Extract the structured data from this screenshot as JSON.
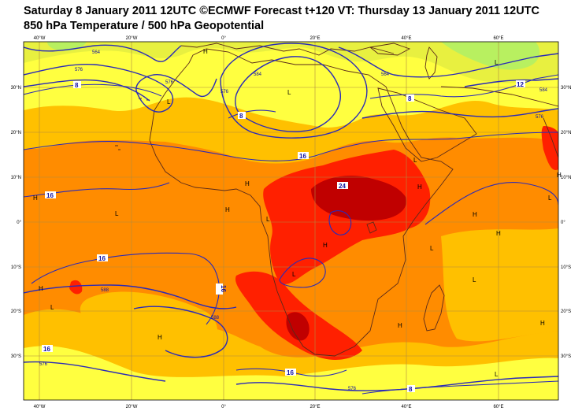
{
  "header": {
    "title_line1": "Saturday 8 January 2011 12UTC ©ECMWF Forecast t+120 VT: Thursday 13 January 2011 12UTC",
    "title_line2": "850 hPa Temperature / 500 hPa Geopotential"
  },
  "colors": {
    "temp_below_4": "#b8f060",
    "temp_4_8": "#e8f040",
    "temp_8_12": "#ffff40",
    "temp_12_16": "#ffc000",
    "temp_16_20": "#ff8c00",
    "temp_20_24": "#ff2000",
    "temp_above_24": "#c00000",
    "geopotential_contour": "#2a2ab8",
    "coastline": "#5a2a1a",
    "grid": "#b08a40"
  },
  "longitude_ticks": [
    "40°W",
    "20°W",
    "0°",
    "20°E",
    "40°E",
    "60°E"
  ],
  "latitude_ticks": [
    "30°N",
    "20°N",
    "10°N",
    "0°",
    "10°S",
    "20°S",
    "30°S"
  ],
  "pressure_centres": [
    {
      "label": "H",
      "id": "h-sahara-north"
    },
    {
      "label": "L",
      "id": "l-morocco"
    },
    {
      "label": "L",
      "id": "l-mediterranean"
    },
    {
      "label": "L",
      "id": "l-caspian"
    },
    {
      "label": "L",
      "id": "l-arabia"
    },
    {
      "label": "H",
      "id": "h-west-atlantic"
    },
    {
      "label": "L",
      "id": "l-guinea"
    },
    {
      "label": "H",
      "id": "h-nigeria"
    },
    {
      "label": "H",
      "id": "h-horn"
    },
    {
      "label": "H",
      "id": "h-congo"
    },
    {
      "label": "L",
      "id": "l-angola"
    },
    {
      "label": "H",
      "id": "h-east-africa"
    },
    {
      "label": "H",
      "id": "h-indian-west"
    },
    {
      "label": "L",
      "id": "l-indian-east"
    },
    {
      "label": "L",
      "id": "l-arabian-sea"
    },
    {
      "label": "H",
      "id": "h-far-east"
    },
    {
      "label": "H",
      "id": "h-brazil"
    },
    {
      "label": "L",
      "id": "l-brazil"
    },
    {
      "label": "H",
      "id": "h-south-atlantic"
    },
    {
      "label": "H",
      "id": "h-mozambique"
    },
    {
      "label": "H",
      "id": "h-madagascar-west"
    },
    {
      "label": "L",
      "id": "l-mid-indian"
    },
    {
      "label": "H",
      "id": "h-south-indian"
    },
    {
      "label": "L",
      "id": "l-south-indian"
    },
    {
      "label": "L",
      "id": "l-far-south"
    }
  ],
  "contour_labels": {
    "temp_8_north": "8",
    "temp_8_center": "8",
    "temp_8_east": "8",
    "temp_8_south": "8",
    "temp_12_east": "12",
    "temp_16_sahel": "16",
    "temp_16_west": "16",
    "temp_16_south_atlantic": "16",
    "temp_16_center": "16",
    "temp_16_south": "16",
    "temp_16_east": "16",
    "temp_24": "24",
    "geo_564_nw": "564",
    "geo_576_nw": "576",
    "geo_576_west": "576",
    "geo_584": "584",
    "geo_576_center": "576",
    "geo_564_east": "564",
    "geo_576_east": "576",
    "geo_584_east": "584",
    "geo_588": "588",
    "geo_588_south": "588",
    "geo_576_south": "576",
    "geo_576_sw": "576"
  }
}
